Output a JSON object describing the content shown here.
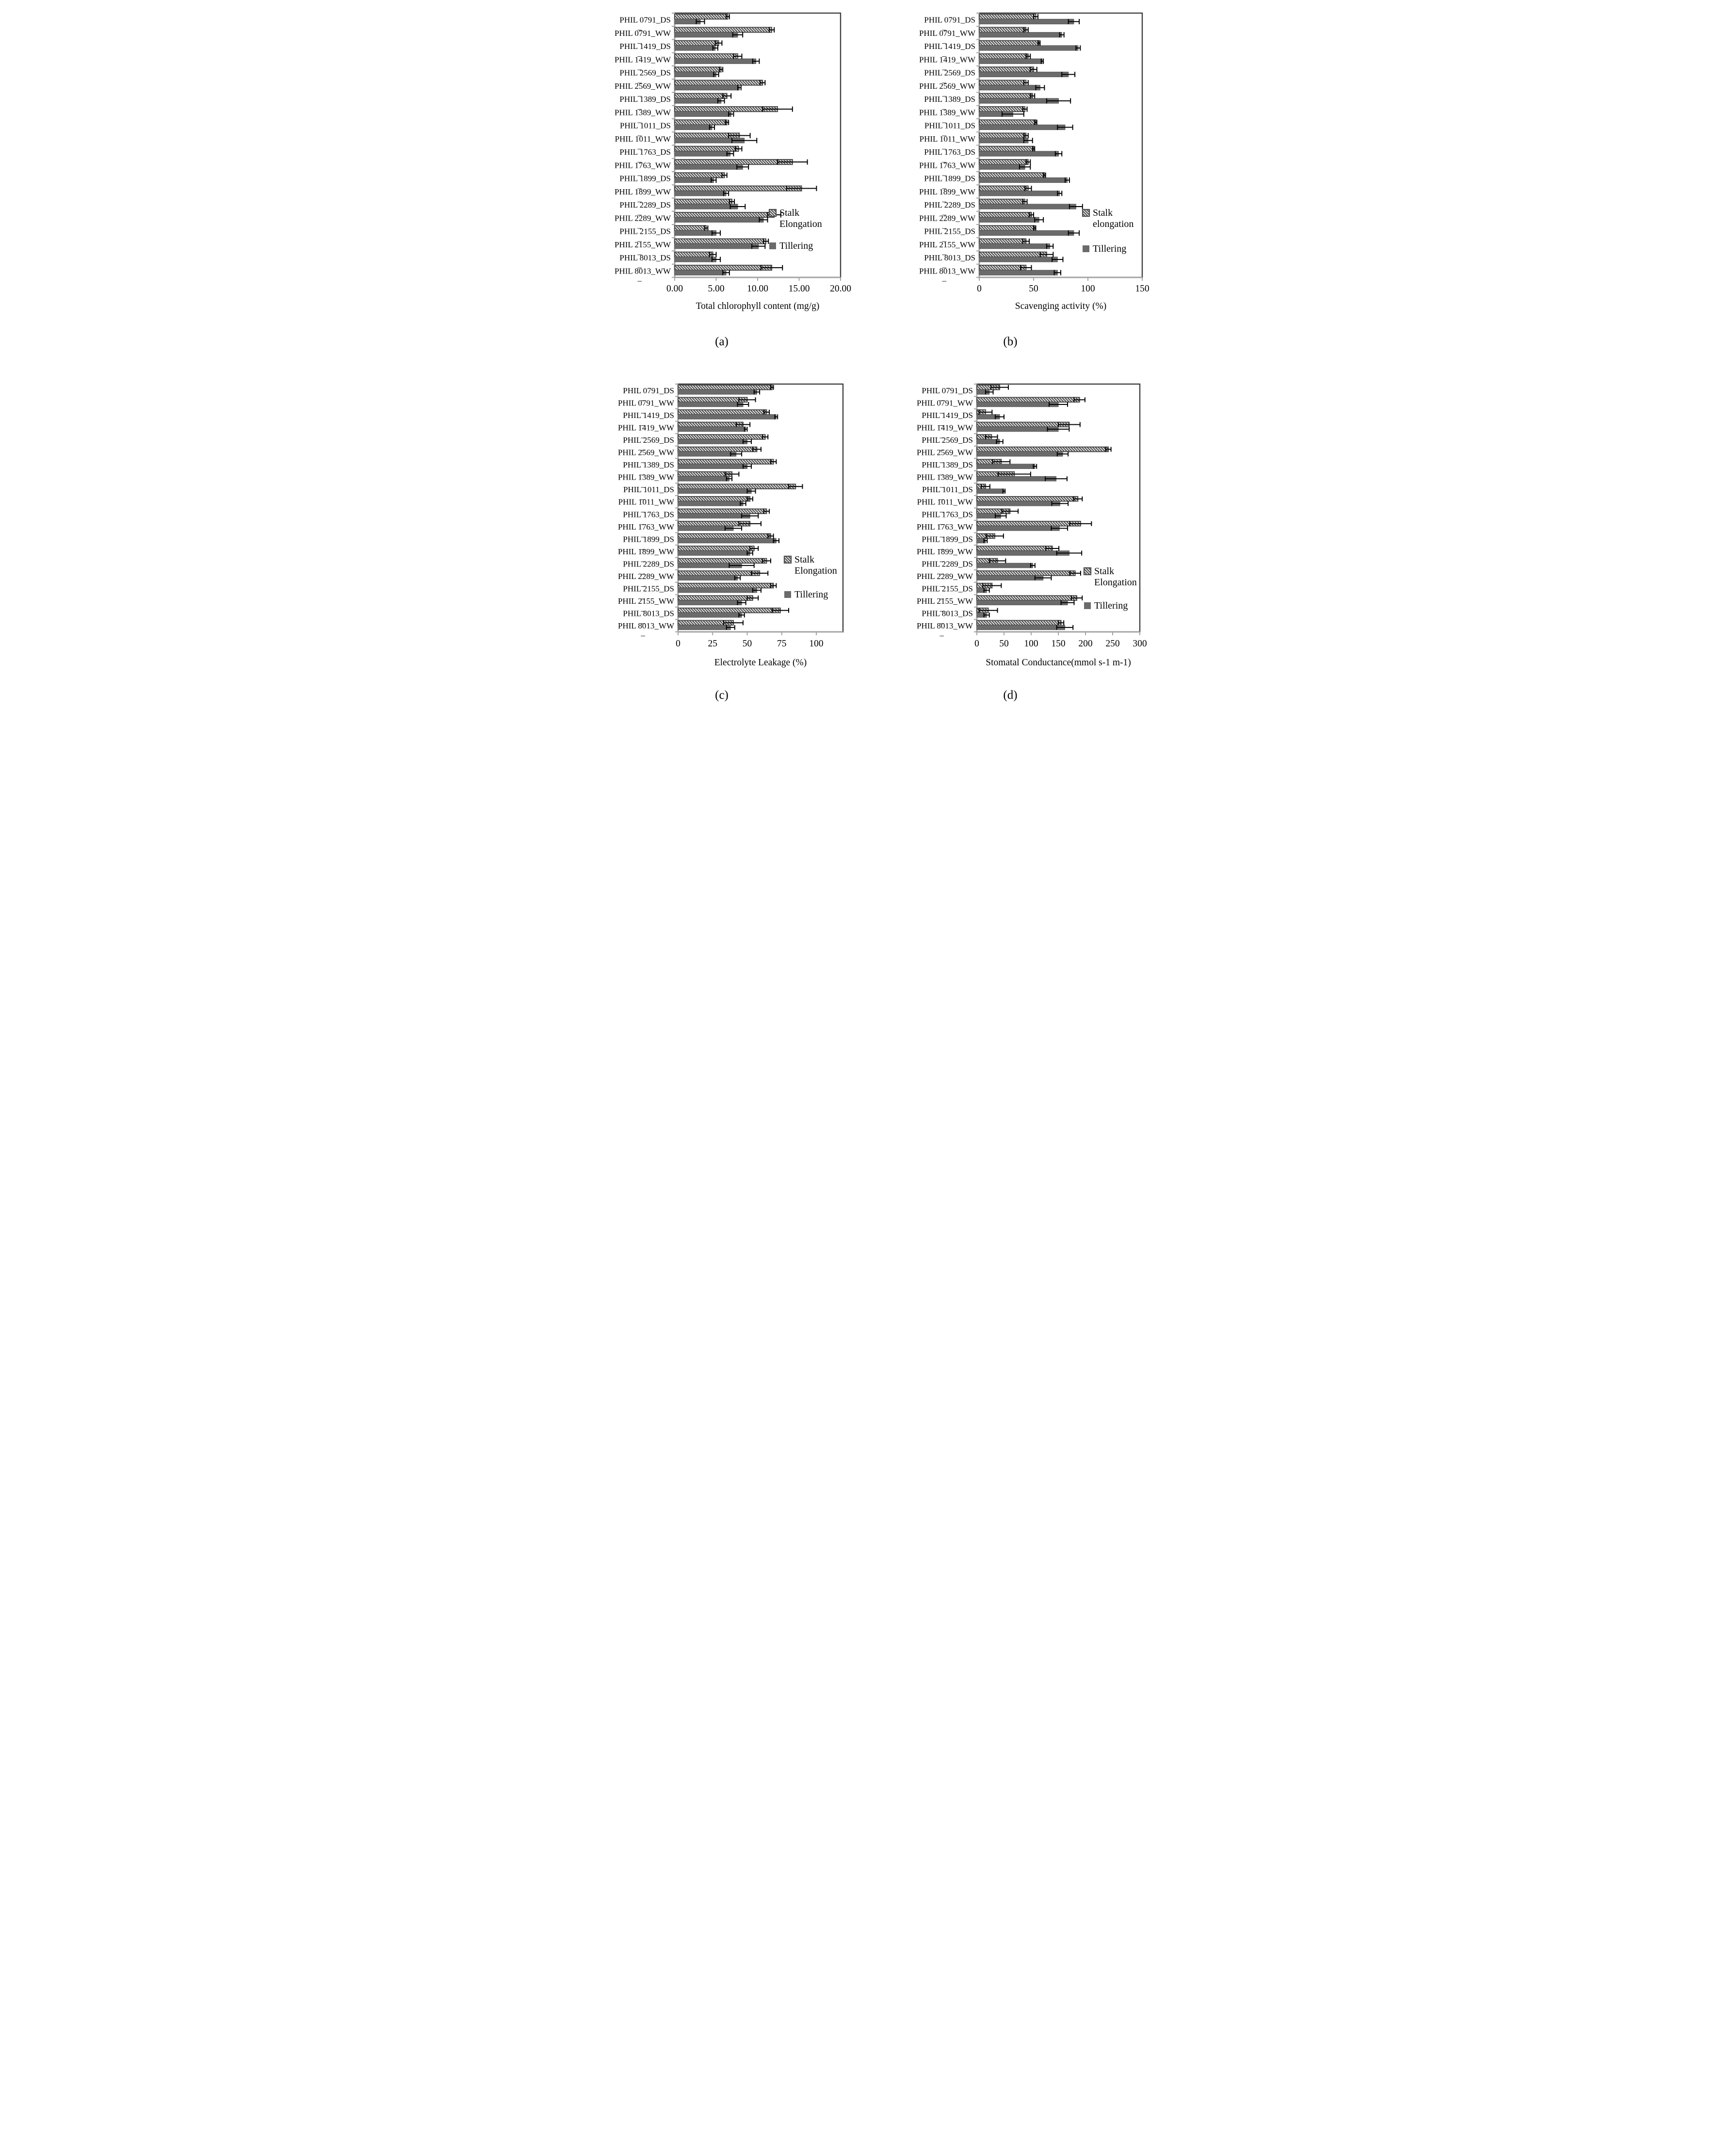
{
  "figure": {
    "background": "#ffffff",
    "label_wrap_suffix": "_"
  },
  "colors": {
    "bar_solid": "#6b6b6b",
    "bar_solid_stroke": "#585858",
    "hatch_stroke": "#4d4d4d",
    "plot_border": "#3f3f3f",
    "axis_gray": "#a3a3a3",
    "error_bar": "#000000",
    "text": "#000000"
  },
  "chart_data": {
    "type": "bar",
    "orientation": "horizontal",
    "grid": false,
    "categories": [
      "PHIL 0791_DS",
      "PHIL 0791_WW",
      "PHIL 1419_DS",
      "PHIL 1419_WW",
      "PHIL 2569_DS",
      "PHIL 2569_WW",
      "PHIL 1389_DS",
      "PHIL 1389_WW",
      "PHIL 1011_DS",
      "PHIL 1011_WW",
      "PHIL 1763_DS",
      "PHIL 1763_WW",
      "PHIL 1899_DS",
      "PHIL 1899_WW",
      "PHIL 2289_DS",
      "PHIL 2289_WW",
      "PHIL 2155_DS",
      "PHIL 2155_WW",
      "PHIL 8013_DS",
      "PHIL 8013_WW"
    ],
    "charts": [
      {
        "id": "a",
        "caption": "(a)",
        "xlabel": "Total chlorophyll content (mg/g)",
        "xlim": [
          0,
          20
        ],
        "xtick_labels": [
          "0.00",
          "5.00",
          "10.00",
          "15.00",
          "20.00"
        ],
        "xtick_values": [
          0,
          5,
          10,
          15,
          20
        ],
        "legend_lines": [
          [
            "Stalk",
            "Elongation"
          ],
          [
            "Tillering"
          ]
        ],
        "legend_position": "inside-right",
        "series": [
          {
            "name": "Stalk Elongation",
            "values": [
              6.4,
              11.7,
              5.3,
              7.6,
              5.6,
              10.6,
              6.3,
              12.4,
              6.3,
              7.8,
              7.7,
              14.2,
              6.0,
              15.3,
              6.9,
              12.0,
              3.8,
              11.0,
              4.6,
              11.7
            ],
            "errors": [
              0.2,
              0.3,
              0.4,
              0.5,
              0.2,
              0.3,
              0.5,
              1.8,
              0.2,
              1.3,
              0.4,
              1.8,
              0.3,
              1.8,
              0.3,
              0.8,
              0.2,
              0.3,
              0.4,
              1.3
            ]
          },
          {
            "name": "Tillering",
            "values": [
              3.1,
              7.6,
              4.9,
              9.8,
              5.0,
              7.8,
              5.6,
              6.8,
              4.5,
              8.4,
              6.7,
              8.2,
              4.7,
              6.2,
              7.6,
              10.7,
              5.0,
              10.1,
              5.0,
              6.2
            ],
            "errors": [
              0.5,
              0.6,
              0.3,
              0.4,
              0.3,
              0.2,
              0.4,
              0.3,
              0.3,
              1.5,
              0.4,
              0.7,
              0.3,
              0.3,
              0.9,
              0.5,
              0.5,
              0.8,
              0.5,
              0.4
            ]
          }
        ]
      },
      {
        "id": "b",
        "caption": "(b)",
        "xlabel": "Scavenging activity (%)",
        "xlim": [
          0,
          150
        ],
        "xtick_labels": [
          "0",
          "50",
          "100",
          "150"
        ],
        "xtick_values": [
          0,
          50,
          100,
          150
        ],
        "legend_lines": [
          [
            "Stalk",
            "elongation"
          ],
          [
            "Tillering"
          ]
        ],
        "legend_position": "inside-right",
        "series": [
          {
            "name": "Stalk elongation",
            "values": [
              52,
              43,
              55,
              45,
              50,
              43,
              49,
              42,
              52,
              43,
              50,
              45,
              60,
              45,
              42,
              48,
              51,
              43,
              62,
              43
            ],
            "errors": [
              2,
              2,
              1,
              2,
              3,
              2,
              2,
              2,
              1,
              2,
              1,
              2,
              1,
              3,
              2,
              2,
              1,
              3,
              6,
              5
            ]
          },
          {
            "name": "Tillering",
            "values": [
              87,
              76,
              91,
              58,
              82,
              56,
              73,
              31,
              79,
              45,
              73,
              42,
              81,
              74,
              89,
              55,
              87,
              65,
              72,
              72
            ],
            "errors": [
              5,
              2,
              2,
              1,
              6,
              4,
              11,
              10,
              7,
              4,
              3,
              5,
              2,
              2,
              6,
              4,
              5,
              3,
              5,
              3
            ]
          }
        ]
      },
      {
        "id": "c",
        "caption": "(c)",
        "xlabel": "Electrolyte Leakage (%)",
        "xlim": [
          0,
          119
        ],
        "xtick_labels": [
          "0",
          "25",
          "50",
          "75",
          "100"
        ],
        "xtick_values": [
          0,
          25,
          50,
          75,
          100
        ],
        "legend_lines": [
          [
            "Stalk",
            "Elongation"
          ],
          [
            "Tillering"
          ]
        ],
        "legend_position": "inside-right",
        "series": [
          {
            "name": "Stalk Elongation",
            "values": [
              68,
              50,
              64,
              47,
              63,
              57,
              69,
              39,
              85,
              52,
              64,
              52,
              67,
              55,
              64,
              59,
              69,
              54,
              74,
              40
            ],
            "errors": [
              1,
              6,
              2,
              5,
              2,
              3,
              2,
              5,
              5,
              2,
              2,
              8,
              2,
              3,
              3,
              6,
              2,
              4,
              6,
              7
            ]
          },
          {
            "name": "Tillering",
            "values": [
              57,
              47,
              71,
              49,
              50,
              42,
              50,
              37,
              53,
              47,
              52,
              40,
              71,
              52,
              46,
              43,
              57,
              46,
              46,
              38
            ],
            "errors": [
              2,
              4,
              1,
              1,
              3,
              4,
              3,
              2,
              3,
              2,
              6,
              6,
              2,
              2,
              9,
              2,
              3,
              3,
              2,
              3
            ]
          }
        ]
      },
      {
        "id": "d",
        "caption": "(d)",
        "xlabel": "Stomatal Conductance(mmol s-1 m-1)",
        "xlim": [
          0,
          300
        ],
        "xtick_labels": [
          "0",
          "50",
          "100",
          "150",
          "200",
          "250",
          "300"
        ],
        "xtick_values": [
          0,
          50,
          100,
          150,
          200,
          250,
          300
        ],
        "legend_lines": [
          [
            "Stalk",
            "Elongation"
          ],
          [
            "Tillering"
          ]
        ],
        "legend_position": "inside-right",
        "series": [
          {
            "name": "Stalk Elongation",
            "values": [
              42,
              189,
              16,
              170,
              27,
              242,
              45,
              69,
              16,
              186,
              61,
              191,
              33,
              139,
              38,
              181,
              28,
              184,
              21,
              155
            ],
            "errors": [
              16,
              10,
              12,
              20,
              11,
              5,
              16,
              30,
              8,
              8,
              15,
              20,
              16,
              12,
              15,
              10,
              17,
              10,
              17,
              5
            ]
          },
          {
            "name": "Tillering",
            "values": [
              23,
              150,
              42,
              150,
              42,
              158,
              107,
              146,
              50,
              153,
              44,
              152,
              16,
              170,
              103,
              122,
              18,
              167,
              18,
              162
            ],
            "errors": [
              7,
              17,
              8,
              20,
              6,
              10,
              3,
              20,
              2,
              15,
              10,
              15,
              3,
              23,
              4,
              15,
              5,
              12,
              5,
              15
            ]
          }
        ]
      }
    ]
  }
}
